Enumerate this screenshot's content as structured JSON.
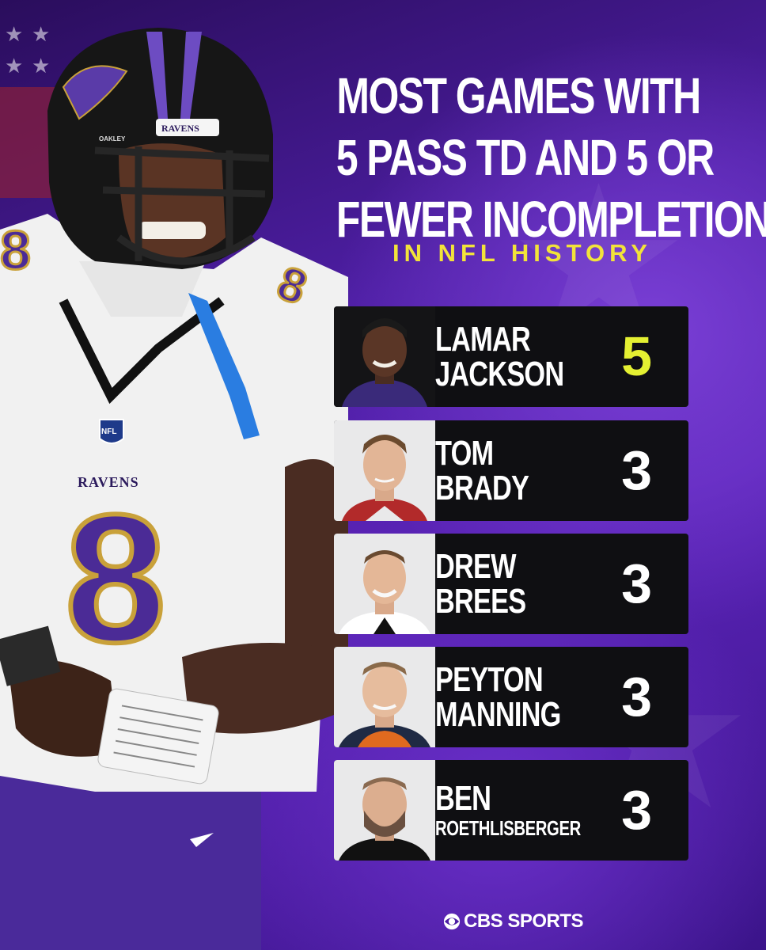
{
  "headline": {
    "line1": "MOST GAMES WITH",
    "line2": "5 PASS TD AND 5 OR",
    "line3": "FEWER INCOMPLETIONS",
    "subtitle": "IN NFL HISTORY"
  },
  "rows": [
    {
      "first": "LAMAR",
      "last": "JACKSON",
      "count": "5"
    },
    {
      "first": "TOM",
      "last": "BRADY",
      "count": "3"
    },
    {
      "first": "DREW",
      "last": "BREES",
      "count": "3"
    },
    {
      "first": "PEYTON",
      "last": "MANNING",
      "count": "3"
    },
    {
      "first": "BEN",
      "last": "ROETHLISBERGER",
      "count": "3"
    }
  ],
  "player": {
    "helmet_text": "RAVENS",
    "helmet_brand": "OAKLEY",
    "jersey_text": "RAVENS",
    "jersey_number": "8",
    "shield_text": "NFL"
  },
  "brand": "CBS SPORTS",
  "colors": {
    "accent": "#e4f032",
    "subtitle": "#f2e33a",
    "background": "#4d1ea3",
    "row_bg": "#0f0f12",
    "ravens_purple": "#3b1d78"
  }
}
